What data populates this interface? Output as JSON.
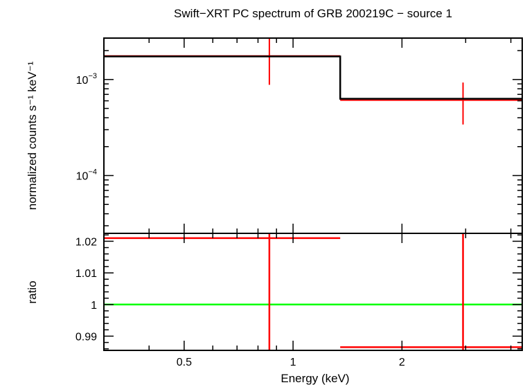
{
  "chart_data": [
    {
      "type": "line",
      "title": "Swift−XRT PC spectrum of GRB 200219C − source 1",
      "ylabel": "normalized counts s⁻¹ keV⁻¹",
      "y_scale": "log",
      "x_scale": "log",
      "xlim": [
        0.3,
        4.3
      ],
      "ylim": [
        2.5e-05,
        0.0027
      ],
      "ytick_labels": [
        {
          "value": 0.001,
          "base": "10",
          "exp": "−3"
        },
        {
          "value": 0.0001,
          "base": "10",
          "exp": "−4"
        }
      ],
      "colors": {
        "data": "#ff0000",
        "model": "#000000"
      },
      "series": [
        {
          "kind": "model",
          "color": "#000000",
          "steps": [
            {
              "x0": 0.3,
              "x1": 1.35,
              "y": 0.00174
            },
            {
              "x0": 1.35,
              "x1": 4.3,
              "y": 0.00063
            }
          ]
        },
        {
          "kind": "data",
          "color": "#ff0000",
          "points": [
            {
              "x": 0.86,
              "xlo": 0.3,
              "xhi": 1.35,
              "y": 0.00176,
              "ylo": 0.00088,
              "yhi": 0.0027
            },
            {
              "x": 2.95,
              "xlo": 1.35,
              "xhi": 4.3,
              "y": 0.00061,
              "ylo": 0.00034,
              "yhi": 0.00093
            }
          ]
        }
      ]
    },
    {
      "type": "line",
      "xlabel": "Energy (keV)",
      "ylabel": "ratio",
      "x_scale": "log",
      "xlim": [
        0.3,
        4.3
      ],
      "ylim": [
        0.9855,
        1.0225
      ],
      "xticks": [
        {
          "value": 0.5,
          "label": "0.5"
        },
        {
          "value": 1,
          "label": "1"
        },
        {
          "value": 2,
          "label": "2"
        }
      ],
      "yticks": [
        {
          "value": 1.02,
          "label": "1.02"
        },
        {
          "value": 1.01,
          "label": "1.01"
        },
        {
          "value": 1,
          "label": "1"
        },
        {
          "value": 0.99,
          "label": "0.99"
        }
      ],
      "colors": {
        "data": "#ff0000",
        "reference": "#00ff00"
      },
      "reference_line": 1,
      "series": [
        {
          "kind": "data",
          "color": "#ff0000",
          "points": [
            {
              "x": 0.86,
              "xlo": 0.3,
              "xhi": 1.35,
              "y": 1.021,
              "ylo": 0.9855,
              "yhi": 1.0225
            },
            {
              "x": 2.95,
              "xlo": 1.35,
              "xhi": 4.3,
              "y": 0.9865,
              "ylo": 0.9855,
              "yhi": 1.0225
            }
          ]
        }
      ]
    }
  ]
}
